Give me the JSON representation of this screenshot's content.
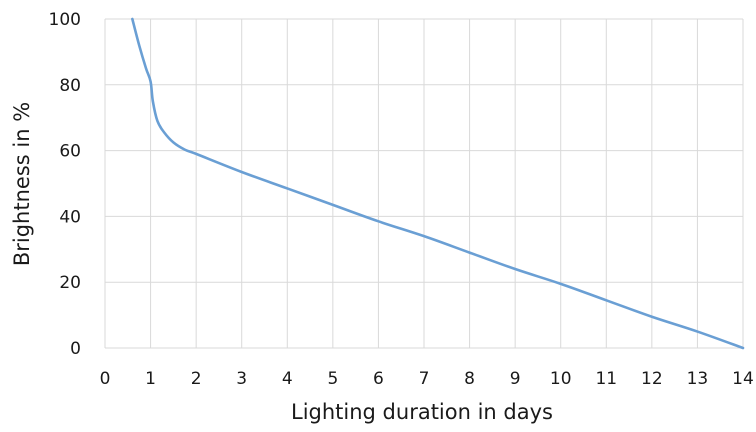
{
  "chart_data": {
    "type": "line",
    "title": "",
    "xlabel": "Lighting duration in days",
    "ylabel": "Brightness in %",
    "xlim": [
      0,
      14
    ],
    "ylim": [
      0,
      100
    ],
    "xticks": [
      0,
      1,
      2,
      3,
      4,
      5,
      6,
      7,
      8,
      9,
      10,
      11,
      12,
      13,
      14
    ],
    "yticks": [
      0,
      20,
      40,
      60,
      80,
      100
    ],
    "grid": true,
    "legend": "none",
    "series": [
      {
        "color": "#6a9fd4",
        "x": [
          0.6,
          0.75,
          0.9,
          1.0,
          1.05,
          1.15,
          1.3,
          1.5,
          1.75,
          2.0,
          3,
          4,
          5,
          6,
          7,
          8,
          9,
          10,
          11,
          12,
          13,
          14
        ],
        "y": [
          100,
          92,
          85,
          81,
          75,
          69,
          65.5,
          62.5,
          60.3,
          59,
          53.5,
          48.5,
          43.5,
          38.5,
          34,
          29,
          24,
          19.5,
          14.5,
          9.5,
          5,
          0
        ]
      }
    ]
  }
}
